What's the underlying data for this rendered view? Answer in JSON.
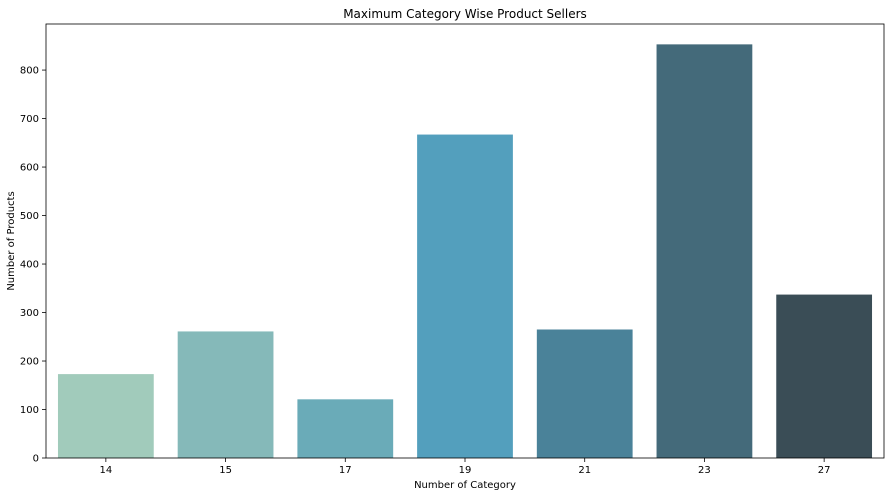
{
  "chart_data": {
    "type": "bar",
    "title": "Maximum Category Wise Product Sellers",
    "xlabel": "Number of Category",
    "ylabel": "Number of Products",
    "categories": [
      "14",
      "15",
      "17",
      "19",
      "21",
      "23",
      "27"
    ],
    "values": [
      173,
      261,
      121,
      667,
      265,
      853,
      337
    ],
    "colors": [
      "#a1cbbb",
      "#85b9b9",
      "#6aabb8",
      "#539fbd",
      "#4a8299",
      "#446a7a",
      "#3a4d56"
    ],
    "ylim": [
      0,
      895
    ],
    "yticks": [
      0,
      100,
      200,
      300,
      400,
      500,
      600,
      700,
      800
    ],
    "grid": false,
    "legend": "none"
  }
}
